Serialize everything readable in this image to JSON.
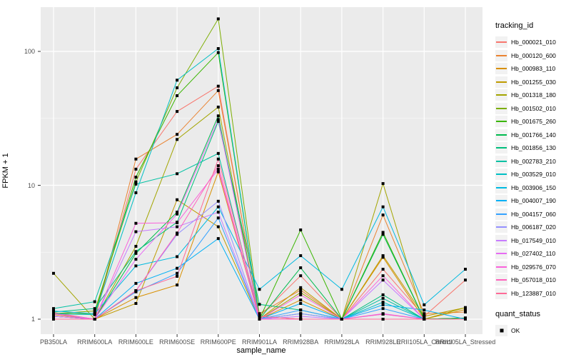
{
  "figure": {
    "xlabel": "sample_name",
    "ylabel": "FPKM + 1"
  },
  "legend": {
    "tracking_title": "tracking_id",
    "quant_title": "quant_status",
    "quant_ok_label": "OK"
  },
  "chart_data": {
    "type": "line",
    "title": "",
    "xlabel": "sample_name",
    "ylabel": "FPKM + 1",
    "yscale": "log10",
    "yticks": [
      1,
      10,
      100
    ],
    "ytick_labels": [
      "1",
      "10",
      "100"
    ],
    "minor_gridlines": [
      3.162,
      31.62
    ],
    "ylim": [
      0.77,
      214
    ],
    "grid": true,
    "panel_bg": "#EBEBEB",
    "grid_color": "#FFFFFF",
    "marker": {
      "shape": "filled-black-square",
      "color": "#000000",
      "legend_label": "OK"
    },
    "legend_title": "tracking_id",
    "quant_legend_title": "quant_status",
    "categories": [
      "PB350LA",
      "RRIM600LA",
      "RRIM600LE",
      "RRIM600SE",
      "RRIM600PE",
      "RRIM901LA",
      "RRIM928BA",
      "RRIM928LA",
      "RRIM928LE",
      "RRII105LA_Control",
      "RRII105LA_Stressed"
    ],
    "series": [
      {
        "name": "Hb_000021_010",
        "color": "#F8766D",
        "values": [
          1.12,
          1.0,
          13.2,
          35.6,
          55,
          1.05,
          2.11,
          1.0,
          2.36,
          1.05,
          1.96
        ]
      },
      {
        "name": "Hb_000120_600",
        "color": "#EA8331",
        "values": [
          1.08,
          1.0,
          15.7,
          24,
          51,
          1.1,
          1.65,
          1.0,
          6.0,
          1.1,
          1.13
        ]
      },
      {
        "name": "Hb_000983_110",
        "color": "#D89000",
        "values": [
          1.05,
          1.0,
          1.45,
          1.8,
          12.6,
          1.0,
          1.39,
          1.0,
          2.9,
          1.0,
          1.18
        ]
      },
      {
        "name": "Hb_001255_030",
        "color": "#C09B00",
        "values": [
          1.1,
          1.0,
          1.31,
          7.8,
          4.9,
          1.0,
          1.72,
          1.0,
          2.98,
          1.05,
          1.22
        ]
      },
      {
        "name": "Hb_001318_180",
        "color": "#A3A500",
        "values": [
          2.2,
          1.0,
          3.5,
          22,
          38.4,
          1.0,
          1.58,
          1.0,
          10.3,
          1.0,
          1.22
        ]
      },
      {
        "name": "Hb_001502_010",
        "color": "#7CAE00",
        "values": [
          1.1,
          1.15,
          10.6,
          53.5,
          175,
          1.05,
          1.0,
          1.0,
          1.0,
          1.0,
          1.02
        ]
      },
      {
        "name": "Hb_001675_260",
        "color": "#39B600",
        "values": [
          1.1,
          1.1,
          11.5,
          46.7,
          98,
          1.0,
          4.64,
          1.0,
          4.45,
          1.0,
          1.02
        ]
      },
      {
        "name": "Hb_001766_140",
        "color": "#00BB4E",
        "values": [
          1.05,
          1.0,
          3.1,
          6.3,
          33,
          1.0,
          2.42,
          1.0,
          4.3,
          1.0,
          1.02
        ]
      },
      {
        "name": "Hb_001856_130",
        "color": "#00BF7D",
        "values": [
          1.13,
          1.2,
          3.2,
          5.3,
          30,
          1.29,
          1.17,
          1.0,
          1.52,
          1.0,
          1.0
        ]
      },
      {
        "name": "Hb_002783_210",
        "color": "#00C1A3",
        "values": [
          1.2,
          1.35,
          10.2,
          12.2,
          17.3,
          1.0,
          1.1,
          1.0,
          1.43,
          1.0,
          1.0
        ]
      },
      {
        "name": "Hb_003529_010",
        "color": "#00BFC4",
        "values": [
          1.1,
          1.08,
          8.8,
          61,
          105,
          1.0,
          1.0,
          1.0,
          1.34,
          1.0,
          1.0
        ]
      },
      {
        "name": "Hb_003906_150",
        "color": "#00BAE0",
        "values": [
          1.15,
          1.1,
          2.5,
          2.93,
          6.9,
          1.67,
          2.98,
          1.67,
          6.9,
          1.28,
          2.36
        ]
      },
      {
        "name": "Hb_004007_190",
        "color": "#00B0F6",
        "values": [
          1.1,
          1.0,
          1.85,
          2.4,
          4.0,
          1.0,
          1.31,
          1.0,
          1.28,
          1.17,
          1.0
        ]
      },
      {
        "name": "Hb_004157_060",
        "color": "#35A2FF",
        "values": [
          1.05,
          1.0,
          1.6,
          2.2,
          5.7,
          1.0,
          1.17,
          1.0,
          1.2,
          1.0,
          1.0
        ]
      },
      {
        "name": "Hb_006187_020",
        "color": "#9590FF",
        "values": [
          1.1,
          1.0,
          1.63,
          4.3,
          7.6,
          1.0,
          1.1,
          1.0,
          1.09,
          1.0,
          1.0
        ]
      },
      {
        "name": "Hb_017549_010",
        "color": "#C77CFF",
        "values": [
          1.1,
          1.0,
          4.5,
          4.9,
          6.3,
          1.0,
          1.05,
          1.0,
          1.96,
          1.0,
          1.0
        ]
      },
      {
        "name": "Hb_027402_110",
        "color": "#E76BF3",
        "values": [
          1.05,
          1.0,
          2.8,
          6.1,
          31,
          1.0,
          1.0,
          1.0,
          1.1,
          1.0,
          1.0
        ]
      },
      {
        "name": "Hb_029576_070",
        "color": "#FA62DB",
        "values": [
          1.1,
          1.0,
          5.2,
          5.25,
          13.2,
          1.0,
          1.52,
          1.0,
          2.11,
          1.0,
          1.0
        ]
      },
      {
        "name": "Hb_057018_010",
        "color": "#FF62BC",
        "values": [
          1.0,
          1.0,
          1.63,
          4.4,
          14,
          1.0,
          1.0,
          1.0,
          1.09,
          1.0,
          1.0
        ]
      },
      {
        "name": "Hb_123887_010",
        "color": "#FF6A98",
        "values": [
          1.0,
          1.0,
          1.63,
          2.09,
          15.7,
          1.05,
          1.0,
          1.0,
          1.0,
          1.0,
          1.0
        ]
      }
    ]
  }
}
